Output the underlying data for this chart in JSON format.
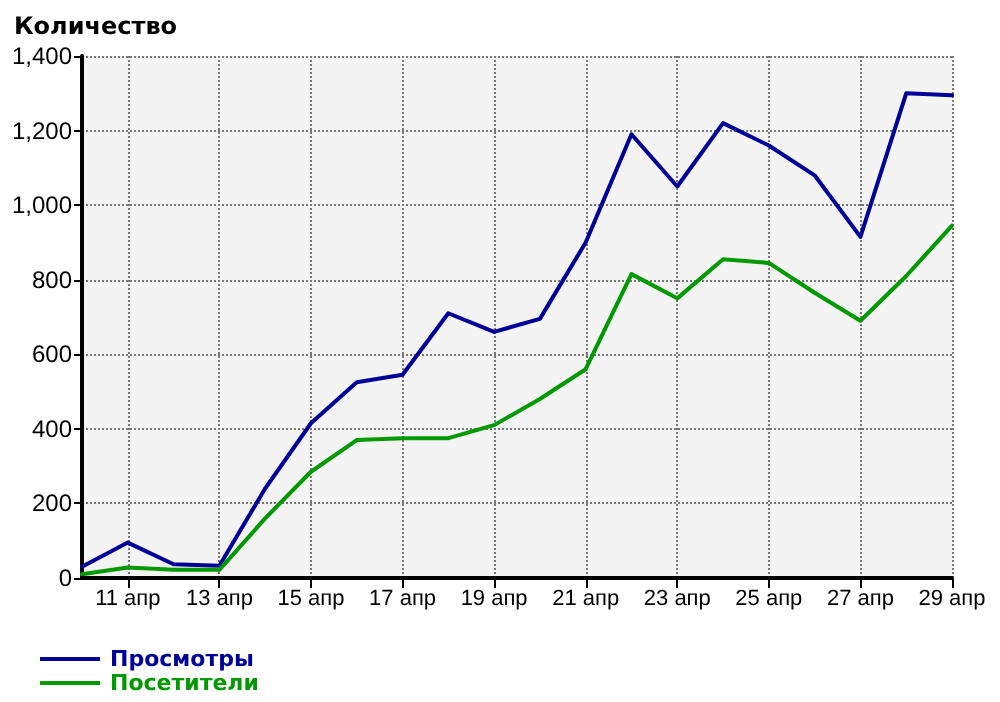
{
  "chart_data": {
    "type": "line",
    "ylabel": "Количество",
    "x": [
      "--04-10",
      "--04-11",
      "--04-12",
      "--04-13",
      "--04-14",
      "--04-15",
      "--04-16",
      "--04-17",
      "--04-18",
      "--04-19",
      "--04-20",
      "--04-21",
      "--04-22",
      "--04-23",
      "--04-24",
      "--04-25",
      "--04-26",
      "--04-27",
      "--04-28",
      "--04-29"
    ],
    "series": [
      {
        "name": "Просмотры",
        "color": "#000099",
        "values": [
          30,
          95,
          37,
          33,
          240,
          415,
          525,
          545,
          710,
          660,
          695,
          900,
          1190,
          1050,
          1220,
          1160,
          1080,
          915,
          1300,
          1295
        ]
      },
      {
        "name": "Посетители",
        "color": "#009900",
        "values": [
          10,
          28,
          22,
          22,
          160,
          285,
          370,
          375,
          375,
          410,
          480,
          560,
          815,
          750,
          855,
          845,
          765,
          690,
          810,
          945
        ]
      }
    ],
    "xlim": [
      "--04-10",
      "--04-29"
    ],
    "xticks": [
      {
        "value": "--04-11",
        "label": "11 апр"
      },
      {
        "value": "--04-13",
        "label": "13 апр"
      },
      {
        "value": "--04-15",
        "label": "15 апр"
      },
      {
        "value": "--04-17",
        "label": "17 апр"
      },
      {
        "value": "--04-19",
        "label": "19 апр"
      },
      {
        "value": "--04-21",
        "label": "21 апр"
      },
      {
        "value": "--04-23",
        "label": "23 апр"
      },
      {
        "value": "--04-25",
        "label": "25 апр"
      },
      {
        "value": "--04-27",
        "label": "27 апр"
      },
      {
        "value": "--04-29",
        "label": "29 апр"
      }
    ],
    "ylim": [
      0,
      1400
    ],
    "yticks": [
      0,
      200,
      400,
      600,
      800,
      {
        "value": 1000,
        "label": "1,000"
      },
      {
        "value": 1200,
        "label": "1,200"
      },
      {
        "value": 1400,
        "label": "1,400"
      }
    ],
    "grid": true,
    "legend": "bottom left",
    "marker": "none",
    "line_style": "solid"
  }
}
